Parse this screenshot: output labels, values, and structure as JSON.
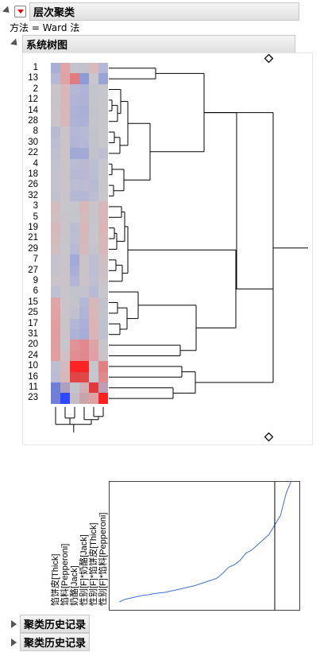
{
  "panel": {
    "title": "层次聚类",
    "method_text": "方法 = Ward 法",
    "dendrogram_title": "系统树图"
  },
  "rows": [
    "1",
    "13",
    "2",
    "12",
    "14",
    "28",
    "8",
    "30",
    "22",
    "4",
    "18",
    "26",
    "32",
    "3",
    "5",
    "19",
    "21",
    "29",
    "7",
    "27",
    "9",
    "6",
    "15",
    "25",
    "17",
    "31",
    "20",
    "24",
    "10",
    "16",
    "11",
    "23"
  ],
  "columns": [
    "馅饼皮[Thick]",
    "馅料[Pepperoni]",
    "奶酪[Jack]",
    "性别[F]*奶酪[Jack]",
    "性别[F]*馅饼皮[Thick]",
    "性别[F]*馅料[Pepperoni]"
  ],
  "heatmap": [
    [
      "#a9aed6",
      "#e0a3a6",
      "#c3c3cd",
      "#c1c2cc",
      "#d7b8bb",
      "#b6b9d6"
    ],
    [
      "#b5b9d7",
      "#dfa2a5",
      "#e07c7f",
      "#8f9bd6",
      "#c6c6cc",
      "#9aa3d6"
    ],
    [
      "#c9c4c8",
      "#d9b6b8",
      "#b5b7d5",
      "#b0b3d5",
      "#c4c4cc",
      "#c6c6cc"
    ],
    [
      "#c7c4c9",
      "#d8b7b9",
      "#b1b4d5",
      "#aeb2d5",
      "#c4c4cc",
      "#c6c6cc"
    ],
    [
      "#c8c4c9",
      "#d8b7b9",
      "#acb1d6",
      "#a9afd6",
      "#c2c3cc",
      "#c6c6cc"
    ],
    [
      "#c9c4c8",
      "#d6b8ba",
      "#aeb2d5",
      "#aab0d6",
      "#c3c4cc",
      "#c6c6cc"
    ],
    [
      "#b8bad4",
      "#c9c4c8",
      "#b3b6d5",
      "#b7b9d5",
      "#c1c2cc",
      "#c6c6cc"
    ],
    [
      "#bcbdd2",
      "#cac3c7",
      "#b0b4d5",
      "#b4b7d5",
      "#c2c3cc",
      "#c6c6cc"
    ],
    [
      "#bfbfd0",
      "#cbc3c7",
      "#a3a9d6",
      "#a2a9d6",
      "#c3c3cc",
      "#bdbfd0"
    ],
    [
      "#c2c1ce",
      "#c9c4c8",
      "#babcd3",
      "#b9bbd3",
      "#bcbed1",
      "#c6c6cc"
    ],
    [
      "#c3c2cd",
      "#cac3c7",
      "#b7b9d4",
      "#b6b9d4",
      "#bbbdd2",
      "#c6c6cc"
    ],
    [
      "#c4c3cc",
      "#cbc3c7",
      "#bbbdd2",
      "#babcd3",
      "#b9bbd3",
      "#c6c6cc"
    ],
    [
      "#c1c1ce",
      "#c8c4c9",
      "#b5b8d5",
      "#b5b8d5",
      "#bbbdd2",
      "#c6c6cc"
    ],
    [
      "#d1bdc0",
      "#c6c6cc",
      "#c5c5cc",
      "#d6b8ba",
      "#c8c4c9",
      "#d8b7b9"
    ],
    [
      "#cfbec2",
      "#c7c5ca",
      "#c5c5cc",
      "#d3babc",
      "#c7c5ca",
      "#d6b8ba"
    ],
    [
      "#d7b8ba",
      "#c8c4c9",
      "#bbbdd2",
      "#d9b6b8",
      "#c6c6cc",
      "#dbb4b6"
    ],
    [
      "#d4babc",
      "#c7c5ca",
      "#bdbed1",
      "#d6b8ba",
      "#c6c6cc",
      "#d8b7b9"
    ],
    [
      "#d0bdc1",
      "#c6c6cc",
      "#b8bad4",
      "#d5b9bb",
      "#c4c4cc",
      "#d6b8ba"
    ],
    [
      "#c3c2cd",
      "#c9c4c8",
      "#a4aad6",
      "#cbc3c7",
      "#bcbed1",
      "#cfbec2"
    ],
    [
      "#c4c3cc",
      "#c8c4c9",
      "#a8aed6",
      "#cac3c7",
      "#bdbed1",
      "#cdc0c4"
    ],
    [
      "#c8c4c9",
      "#cac3c7",
      "#b2b5d5",
      "#cbc3c7",
      "#bfbfd0",
      "#cbc3c7"
    ],
    [
      "#bebfd1",
      "#c7c5ca",
      "#c3c3cd",
      "#c3c3cd",
      "#b8bad4",
      "#c6c6cc"
    ],
    [
      "#dda7aa",
      "#cac3c7",
      "#c3c3cd",
      "#b4b7d5",
      "#d7b8ba",
      "#c1c2cc"
    ],
    [
      "#dfa2a5",
      "#cbc3c7",
      "#c0c0cf",
      "#b0b4d5",
      "#d9b6b8",
      "#c3c3cd"
    ],
    [
      "#e09ea1",
      "#c9c4c8",
      "#b3b6d5",
      "#a9afd6",
      "#dbb4b6",
      "#c0c1cf"
    ],
    [
      "#df9fa2",
      "#cbc3c7",
      "#aeb2d5",
      "#a7add6",
      "#dab5b7",
      "#bfbfd0"
    ],
    [
      "#de9fa2",
      "#c6c6cc",
      "#e09295",
      "#e08a8d",
      "#dfa2a5",
      "#c7c5ca"
    ],
    [
      "#df9ea1",
      "#cec0c4",
      "#e08e91",
      "#e0898c",
      "#e0a0a3",
      "#cbc3c7"
    ],
    [
      "#bdbed1",
      "#d4babc",
      "#ff2424",
      "#ff2424",
      "#c7c5ca",
      "#e08082"
    ],
    [
      "#babcd3",
      "#d8b7b9",
      "#e04444",
      "#e04848",
      "#c6c6cc",
      "#df8a8d"
    ],
    [
      "#6f7fd6",
      "#ad9fbf",
      "#c3c3cd",
      "#d1b0b3",
      "#e03a3d",
      "#bc9fb6"
    ],
    [
      "#7180d6",
      "#2e48ff",
      "#c5bcc4",
      "#c8a5aa",
      "#dda0a3",
      "#ff2020"
    ]
  ],
  "chart_data": {
    "type": "line",
    "title": "",
    "xlabel": "",
    "ylabel": "",
    "x": [
      1,
      2,
      3,
      4,
      5,
      6,
      7,
      8,
      9,
      10,
      11,
      12,
      13,
      14,
      15,
      16,
      17,
      18,
      19,
      20,
      21,
      22,
      23,
      24,
      25,
      26,
      27,
      28,
      29,
      30,
      31
    ],
    "values": [
      0.5,
      0.9,
      1.1,
      1.3,
      1.5,
      1.6,
      1.8,
      1.9,
      2.0,
      2.2,
      2.4,
      2.6,
      2.8,
      3.0,
      3.3,
      3.6,
      3.9,
      4.2,
      5.0,
      5.9,
      6.3,
      7.0,
      8.1,
      8.6,
      9.4,
      10.2,
      11.0,
      12.5,
      14.0,
      17.5,
      19.6
    ],
    "cut_line_at": 28
  },
  "footer": {
    "history1": "聚类历史记录",
    "history2": "聚类历史记录"
  }
}
